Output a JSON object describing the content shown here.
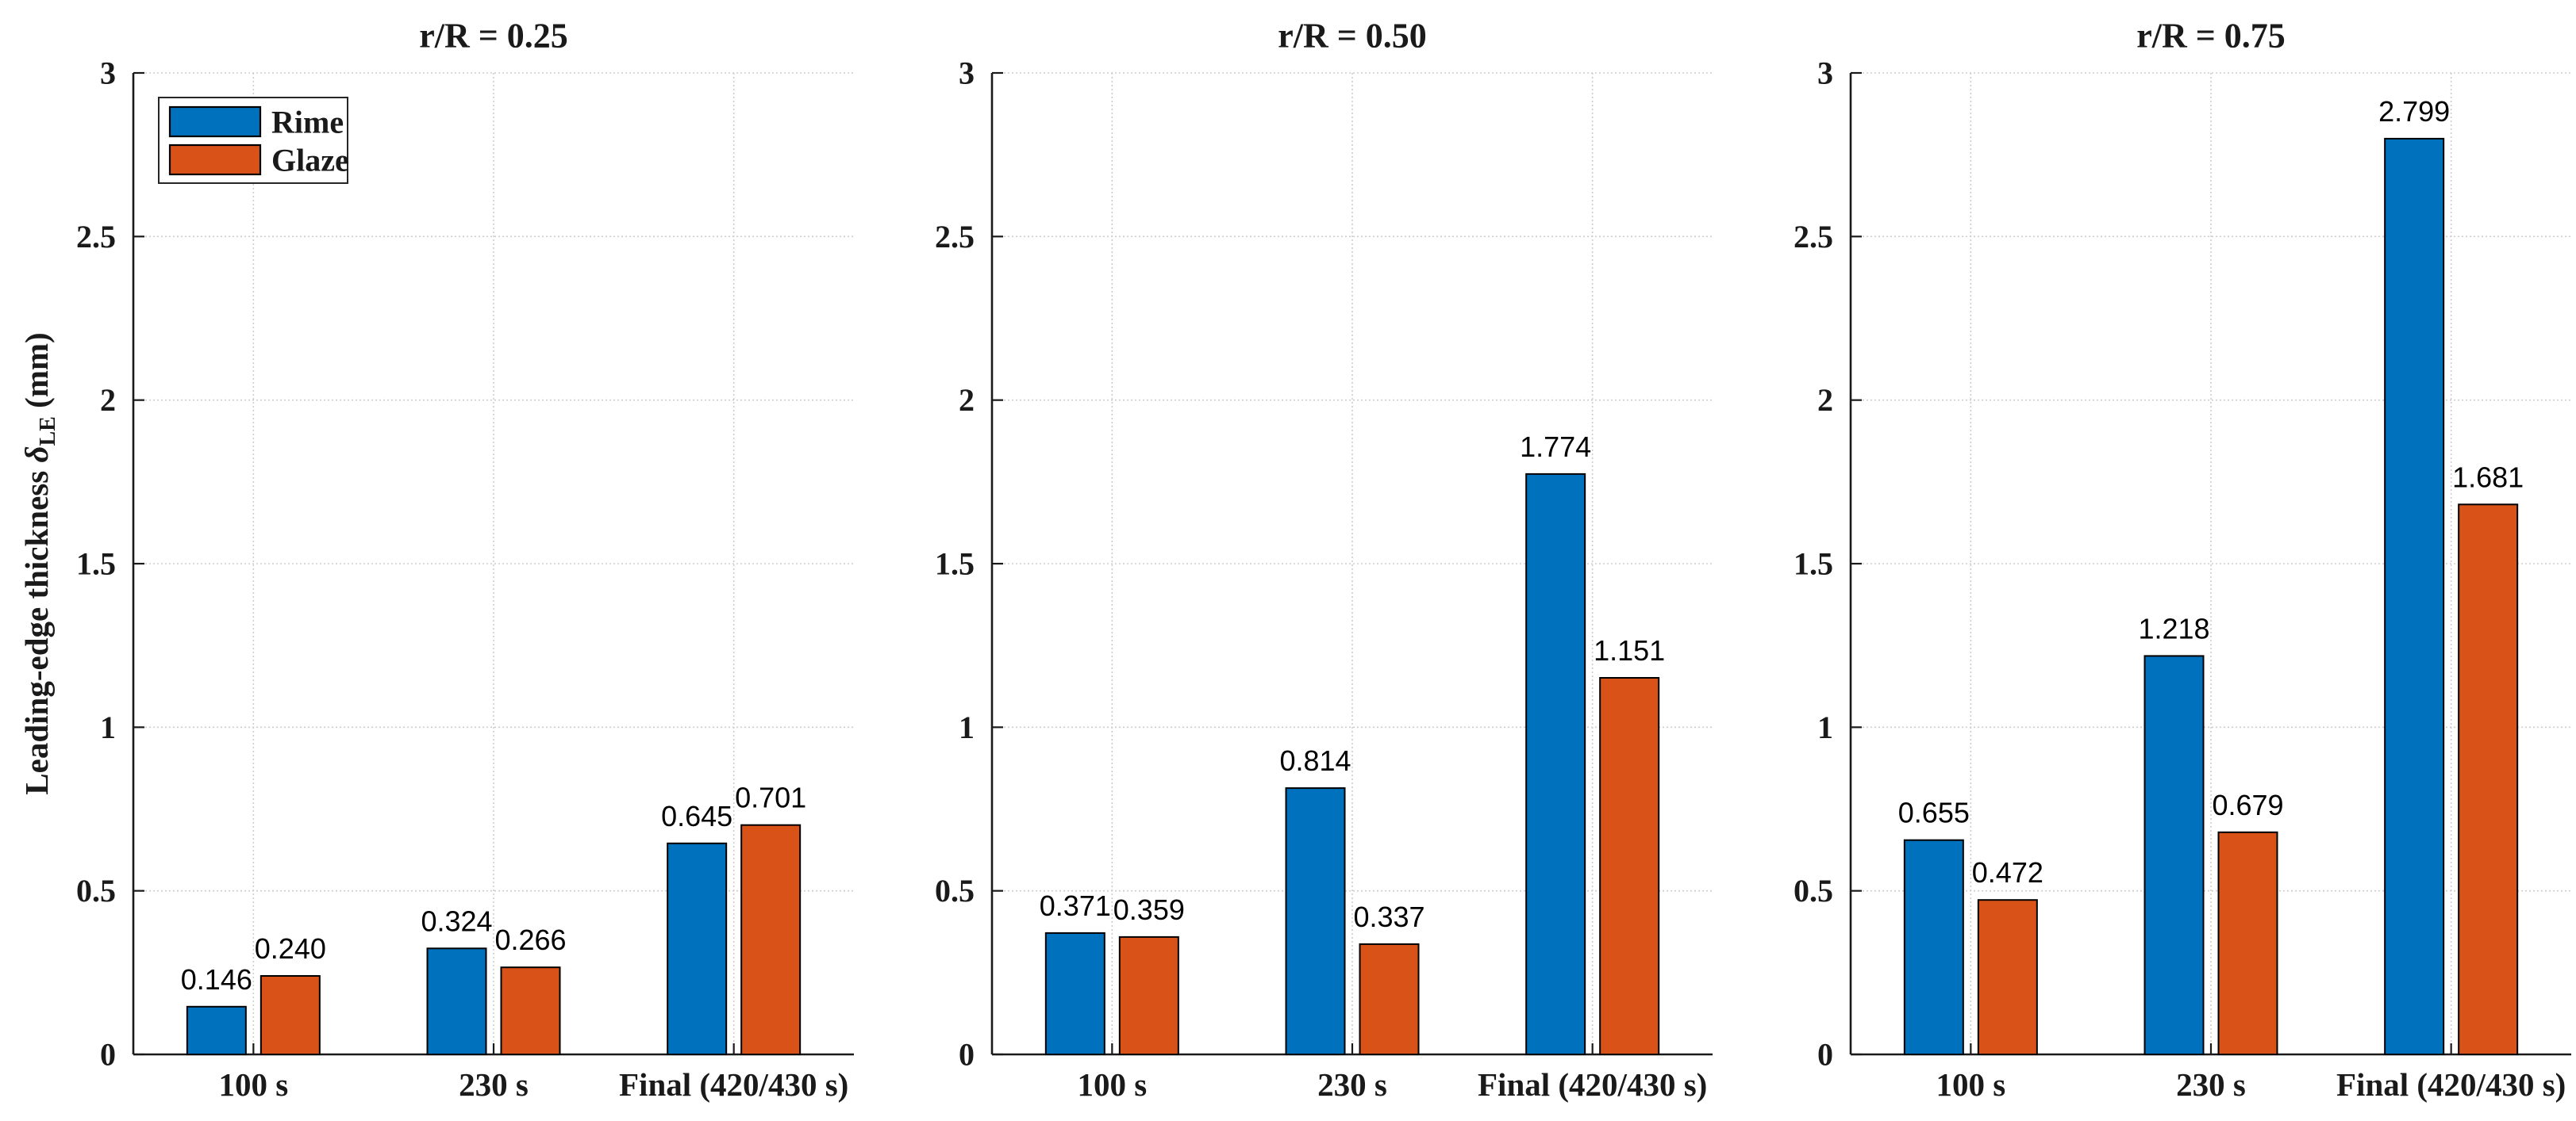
{
  "figure": {
    "ylabel": {
      "prefix": "Leading-edge thickness ",
      "symbol": "δ",
      "subscript": "LE",
      "suffix": " (mm)"
    },
    "legend": {
      "entries": [
        "Rime",
        "Glaze"
      ],
      "position": "top-left"
    },
    "colors": {
      "rime": "#0072BD",
      "glaze": "#D95319",
      "bar_edge": "#000000",
      "axis": "#1a1a1a",
      "grid": "#cdcdcd",
      "value_label": "#000000",
      "background": "#ffffff"
    }
  },
  "chart_data": [
    {
      "type": "bar",
      "title": "r/R = 0.25",
      "categories": [
        "100 s",
        "230 s",
        "Final (420/430 s)"
      ],
      "series": [
        {
          "name": "Rime",
          "color": "#0072BD",
          "values": [
            0.146,
            0.324,
            0.645
          ]
        },
        {
          "name": "Glaze",
          "color": "#D95319",
          "values": [
            0.24,
            0.266,
            0.701
          ]
        }
      ],
      "xlabel": "",
      "ylabel": "Leading-edge thickness δLE (mm)",
      "ylim": [
        0,
        3
      ],
      "yticks": [
        0,
        0.5,
        1,
        1.5,
        2,
        2.5,
        3
      ],
      "ytick_labels": [
        "0",
        "0.5",
        "1",
        "1.5",
        "2",
        "2.5",
        "3"
      ],
      "grid": true,
      "value_label_decimals": 3,
      "show_legend": true,
      "legend_position": "top-left"
    },
    {
      "type": "bar",
      "title": "r/R = 0.50",
      "categories": [
        "100 s",
        "230 s",
        "Final (420/430 s)"
      ],
      "series": [
        {
          "name": "Rime",
          "color": "#0072BD",
          "values": [
            0.371,
            0.814,
            1.774
          ]
        },
        {
          "name": "Glaze",
          "color": "#D95319",
          "values": [
            0.359,
            0.337,
            1.151
          ]
        }
      ],
      "xlabel": "",
      "ylim": [
        0,
        3
      ],
      "yticks": [
        0,
        0.5,
        1,
        1.5,
        2,
        2.5,
        3
      ],
      "ytick_labels": [
        "0",
        "0.5",
        "1",
        "1.5",
        "2",
        "2.5",
        "3"
      ],
      "grid": true,
      "value_label_decimals": 3,
      "show_legend": false
    },
    {
      "type": "bar",
      "title": "r/R = 0.75",
      "categories": [
        "100 s",
        "230 s",
        "Final (420/430 s)"
      ],
      "series": [
        {
          "name": "Rime",
          "color": "#0072BD",
          "values": [
            0.655,
            1.218,
            2.799
          ]
        },
        {
          "name": "Glaze",
          "color": "#D95319",
          "values": [
            0.472,
            0.679,
            1.681
          ]
        }
      ],
      "xlabel": "",
      "ylim": [
        0,
        3
      ],
      "yticks": [
        0,
        0.5,
        1,
        1.5,
        2,
        2.5,
        3
      ],
      "ytick_labels": [
        "0",
        "0.5",
        "1",
        "1.5",
        "2",
        "2.5",
        "3"
      ],
      "grid": true,
      "value_label_decimals": 3,
      "show_legend": false
    }
  ]
}
